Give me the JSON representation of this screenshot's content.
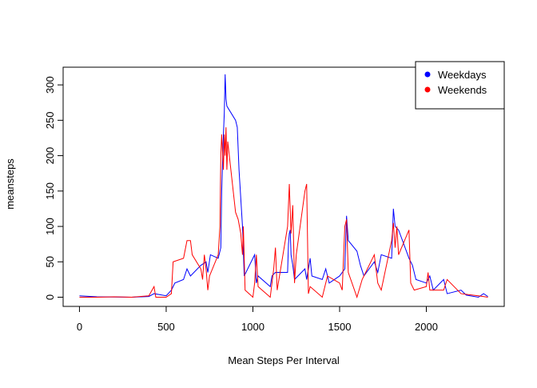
{
  "chart_data": {
    "type": "line",
    "xlabel": "Mean Steps Per Interval",
    "ylabel": "meansteps",
    "xlim": [
      -94.2,
      2449.2
    ],
    "ylim": [
      -13,
      325
    ],
    "xticks": [
      0,
      500,
      1000,
      1500,
      2000
    ],
    "yticks": [
      0,
      50,
      100,
      150,
      200,
      250,
      300
    ],
    "legend": "topright",
    "series": [
      {
        "name": "Weekdays",
        "color": "#0000ff",
        "x": [
          0,
          100,
          200,
          300,
          400,
          430,
          500,
          530,
          550,
          600,
          620,
          640,
          700,
          730,
          740,
          755,
          800,
          815,
          820,
          830,
          835,
          840,
          845,
          850,
          900,
          910,
          920,
          930,
          940,
          950,
          1000,
          1010,
          1020,
          1030,
          1100,
          1110,
          1130,
          1200,
          1205,
          1210,
          1215,
          1220,
          1230,
          1240,
          1300,
          1310,
          1320,
          1330,
          1340,
          1400,
          1420,
          1440,
          1500,
          1530,
          1540,
          1550,
          1600,
          1620,
          1640,
          1700,
          1720,
          1740,
          1800,
          1810,
          1820,
          1840,
          1900,
          1920,
          1940,
          2000,
          2020,
          2040,
          2100,
          2120,
          2200,
          2230,
          2300,
          2330,
          2355
        ],
        "values": [
          2,
          0.5,
          0.3,
          0,
          1,
          5,
          2,
          10,
          20,
          25,
          40,
          30,
          45,
          50,
          35,
          60,
          55,
          70,
          150,
          230,
          260,
          315,
          280,
          270,
          250,
          240,
          180,
          140,
          100,
          30,
          55,
          60,
          20,
          30,
          15,
          30,
          35,
          35,
          75,
          90,
          95,
          60,
          45,
          25,
          40,
          25,
          40,
          55,
          30,
          25,
          40,
          20,
          30,
          40,
          115,
          80,
          65,
          45,
          30,
          50,
          35,
          60,
          55,
          125,
          100,
          95,
          55,
          45,
          25,
          20,
          30,
          10,
          25,
          5,
          10,
          3,
          0,
          5,
          1
        ]
      },
      {
        "name": "Weekends",
        "color": "#ff0000",
        "x": [
          0,
          100,
          200,
          300,
          400,
          430,
          440,
          500,
          530,
          540,
          600,
          620,
          640,
          650,
          700,
          710,
          720,
          730,
          740,
          750,
          800,
          810,
          815,
          820,
          830,
          835,
          840,
          845,
          850,
          855,
          900,
          915,
          930,
          940,
          945,
          955,
          1000,
          1010,
          1020,
          1030,
          1100,
          1120,
          1130,
          1140,
          1200,
          1210,
          1220,
          1230,
          1240,
          1250,
          1300,
          1310,
          1320,
          1330,
          1400,
          1430,
          1500,
          1515,
          1530,
          1540,
          1550,
          1600,
          1630,
          1700,
          1720,
          1740,
          1800,
          1810,
          1820,
          1830,
          1840,
          1900,
          1910,
          1930,
          2000,
          2010,
          2020,
          2100,
          2120,
          2200,
          2300,
          2355
        ],
        "values": [
          0,
          0,
          0.5,
          0,
          2,
          15,
          0,
          0,
          5,
          50,
          55,
          80,
          80,
          60,
          40,
          25,
          60,
          40,
          10,
          30,
          60,
          100,
          200,
          230,
          180,
          230,
          200,
          240,
          180,
          220,
          120,
          110,
          90,
          60,
          100,
          10,
          0,
          20,
          60,
          15,
          0,
          40,
          70,
          10,
          100,
          160,
          90,
          130,
          20,
          60,
          150,
          160,
          5,
          15,
          0,
          30,
          20,
          10,
          100,
          110,
          35,
          0,
          25,
          60,
          20,
          10,
          80,
          105,
          70,
          100,
          60,
          95,
          20,
          10,
          15,
          35,
          10,
          10,
          25,
          5,
          2,
          0
        ]
      }
    ]
  }
}
